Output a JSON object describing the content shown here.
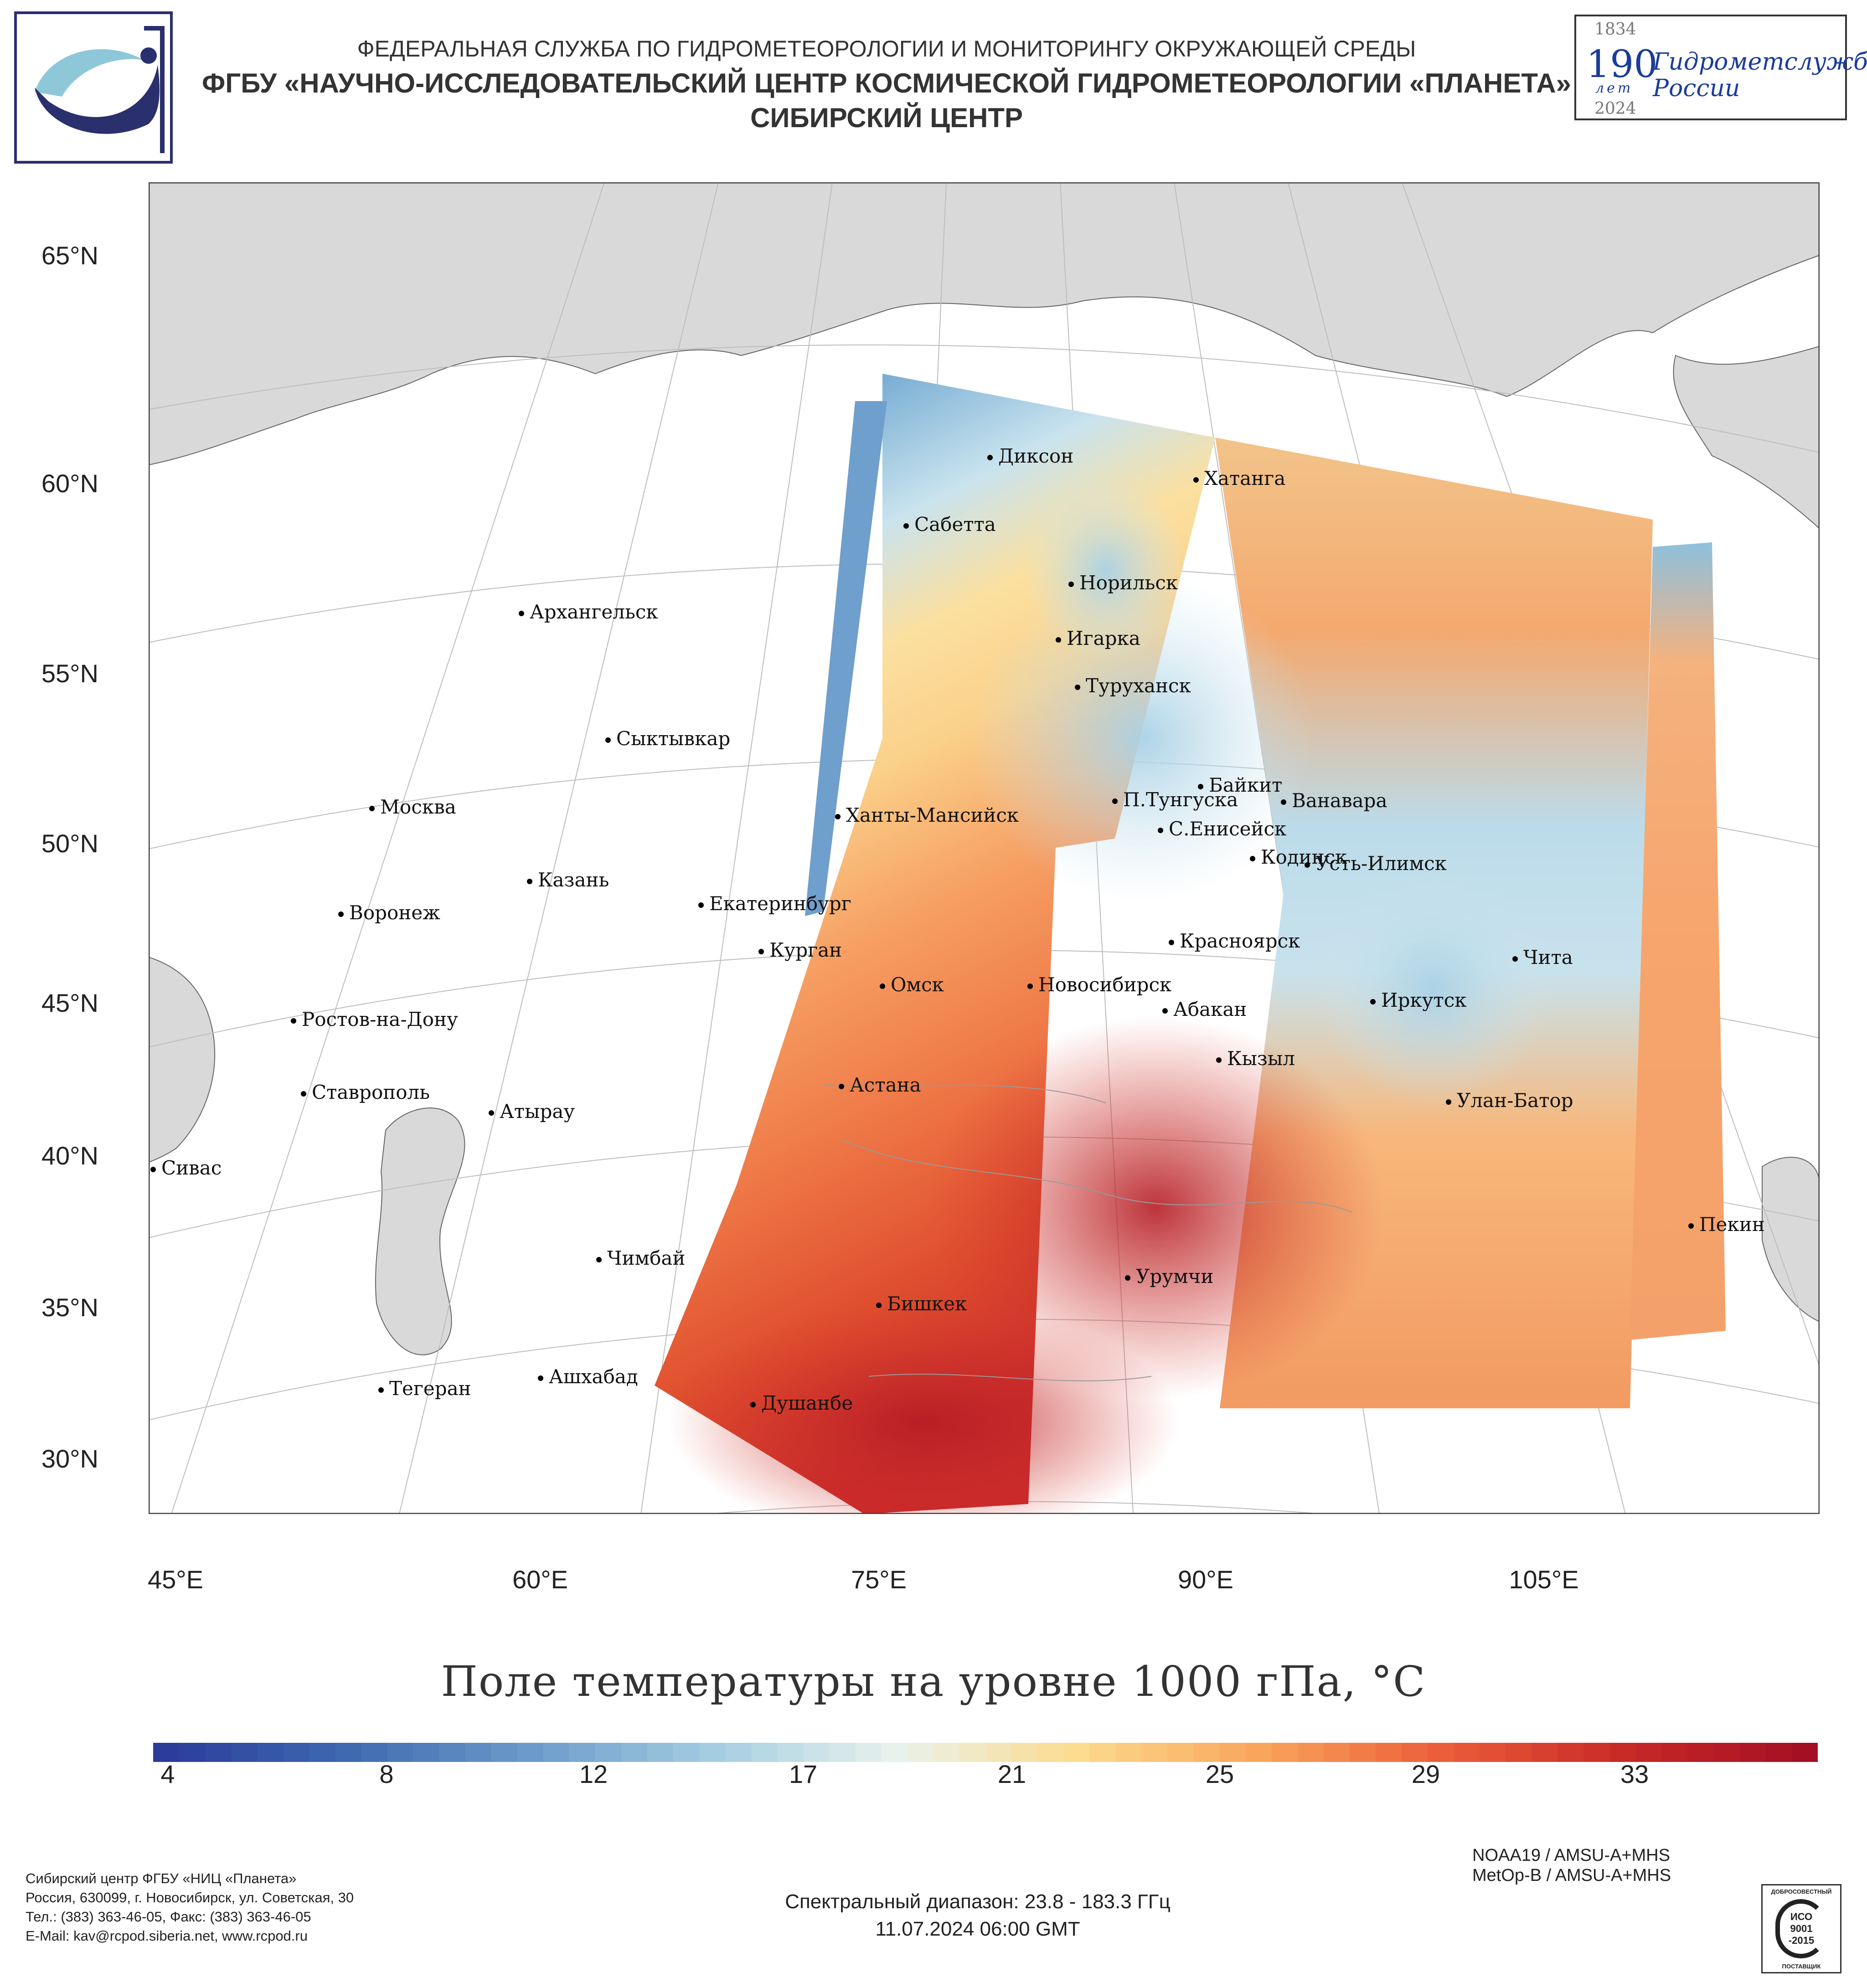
{
  "header": {
    "line1": "ФЕДЕРАЛЬНАЯ СЛУЖБА ПО ГИДРОМЕТЕОРОЛОГИИ И МОНИТОРИНГУ ОКРУЖАЮЩЕЙ СРЕДЫ",
    "line2": "ФГБУ «НАУЧНО-ИССЛЕДОВАТЕЛЬСКИЙ ЦЕНТР КОСМИЧЕСКОЙ ГИДРОМЕТЕОРОЛОГИИ «ПЛАНЕТА»",
    "line3": "СИБИРСКИЙ ЦЕНТР"
  },
  "badge": {
    "year_start": "1834",
    "number": "190",
    "word": "лет",
    "year_end": "2024",
    "text1": "Гидрометслужбе",
    "text2": "России"
  },
  "map": {
    "lat_labels": [
      "65°N",
      "60°N",
      "55°N",
      "50°N",
      "45°N",
      "40°N",
      "35°N",
      "30°N"
    ],
    "lon_labels": [
      "45°E",
      "60°E",
      "75°E",
      "90°E",
      "105°E"
    ],
    "cities": [
      "Диксон",
      "Хатанга",
      "Сабетта",
      "Норильск",
      "Архангельск",
      "Игарка",
      "Туруханск",
      "Сыктывкар",
      "Байкит",
      "Москва",
      "П.Тунгуска",
      "Ванавара",
      "Ханты-Мансийск",
      "С.Енисейск",
      "Казань",
      "Кодинск",
      "Усть-Илимск",
      "Екатеринбург",
      "Воронеж",
      "Красноярск",
      "Курган",
      "Чита",
      "Омск",
      "Новосибирск",
      "Ростов-на-Дону",
      "Иркутск",
      "Абакан",
      "Кызыл",
      "Ставрополь",
      "Астана",
      "Улан-Батор",
      "Атырау",
      "Сивас",
      "Пекин",
      "Чимбай",
      "Урумчи",
      "Бишкек",
      "Ашхабад",
      "Тегеран",
      "Душанбе"
    ]
  },
  "title": "Поле температуры на уровне 1000 гПа, °С",
  "colorbar": {
    "ticks": [
      "4",
      "8",
      "12",
      "17",
      "21",
      "25",
      "29",
      "33"
    ],
    "colors": [
      "#2b3c9a",
      "#3f6ab0",
      "#6c9bcb",
      "#a4cde2",
      "#e8f2ec",
      "#fcdc8e",
      "#f9a55b",
      "#ec5e3a",
      "#c82a26",
      "#a50f24"
    ]
  },
  "footer": {
    "org": "Сибирский центр ФГБУ «НИЦ «Планета»",
    "address": "Россия, 630099, г. Новосибирск, ул. Советская, 30",
    "phone": "Тел.: (383) 363-46-05, Факс: (383) 363-46-05",
    "email": "E-Mail: kav@rcpod.siberia.net, www.rcpod.ru",
    "sat1": "NOAA19 / AMSU-A+MHS",
    "sat2": "MetOp-B / AMSU-A+MHS",
    "range": "Спектральный диапазон: 23.8 - 183.3 ГГц",
    "datetime": "11.07.2024 06:00 GMT"
  },
  "iso": {
    "top": "ДОБРОСОВЕСТНЫЙ",
    "line1": "ИСО",
    "line2": "9001",
    "line3": "-2015",
    "bottom": "ПОСТАВЩИК"
  }
}
